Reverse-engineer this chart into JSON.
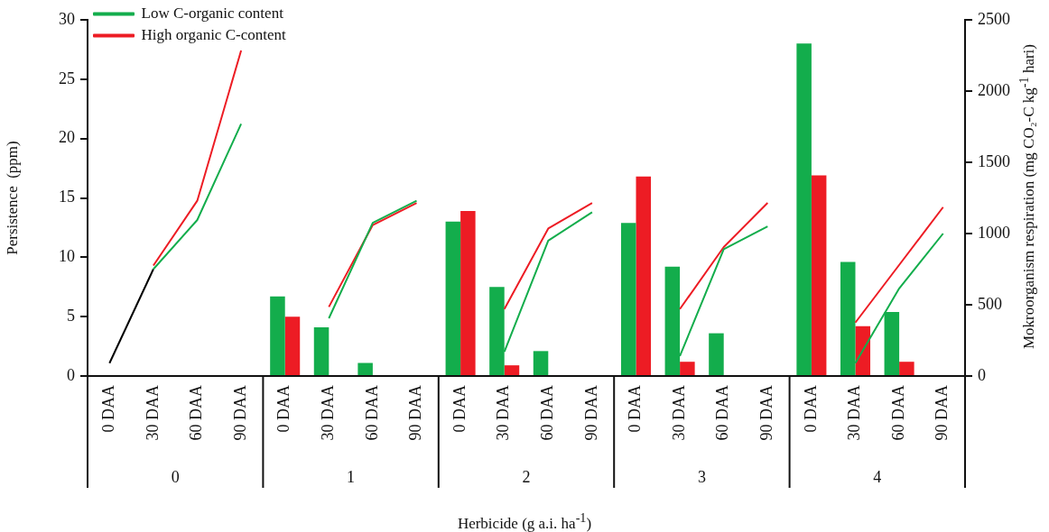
{
  "chart_data": {
    "type": "bar",
    "ylabel": "Persistence  (ppm)",
    "y2label": "Mokroorganism respiration (mg CO₂-C kg$^{-1}$ hari)",
    "xlabel": "Herbicide (g a.i. ha$^{-1}$)",
    "categories": [
      "0 DAA",
      "30 DAA",
      "60 DAA",
      "90 DAA",
      "0 DAA",
      "30 DAA",
      "60 DAA",
      "90 DAA",
      "0 DAA",
      "30 DAA",
      "60 DAA",
      "90 DAA",
      "0 DAA",
      "30 DAA",
      "60 DAA",
      "90 DAA",
      "0 DAA",
      "30 DAA",
      "60 DAA",
      "90 DAA"
    ],
    "annotations": [
      "0",
      "1",
      "2",
      "3",
      "4"
    ],
    "series": [
      {
        "color": "#13ad4c",
        "values": [
          null,
          null,
          null,
          null,
          6.7,
          4.1,
          1.1,
          null,
          13.0,
          7.5,
          2.1,
          null,
          12.9,
          9.2,
          3.6,
          null,
          28.0,
          9.6,
          5.4,
          null
        ]
      },
      {
        "color": "#ed1c24",
        "values": [
          null,
          null,
          null,
          null,
          5.0,
          null,
          null,
          null,
          13.9,
          0.9,
          null,
          null,
          16.8,
          1.2,
          null,
          null,
          16.9,
          4.2,
          1.2,
          null
        ]
      },
      {
        "type": "line",
        "axis": "y2",
        "name": "Low C-organic content",
        "color": "#13ad4c",
        "values": [
          null,
          750,
          1095,
          1770,
          null,
          405,
          1075,
          1230,
          null,
          170,
          950,
          1150,
          null,
          140,
          890,
          1050,
          null,
          90,
          615,
          1000
        ]
      },
      {
        "type": "line",
        "axis": "y2",
        "name": "High organic C-content",
        "color": "#ed1c24",
        "values": [
          null,
          775,
          1230,
          2285,
          null,
          485,
          1060,
          1215,
          null,
          470,
          1035,
          1215,
          null,
          470,
          905,
          1215,
          null,
          375,
          780,
          1185
        ]
      },
      {
        "type": "line",
        "axis": "y2",
        "color": "#000000",
        "values": [
          90,
          750,
          null,
          null,
          null,
          null,
          null,
          null,
          null,
          null,
          null,
          null,
          null,
          null,
          null,
          null,
          null,
          null,
          null,
          null
        ]
      }
    ],
    "ylim": [
      0,
      30
    ],
    "yticks": [
      0,
      5,
      10,
      15,
      20,
      25,
      30
    ],
    "y2lim": [
      0,
      2500
    ],
    "y2ticks": [
      0,
      500,
      1000,
      1500,
      2000,
      2500
    ],
    "legend": "top left",
    "marker": "none"
  }
}
